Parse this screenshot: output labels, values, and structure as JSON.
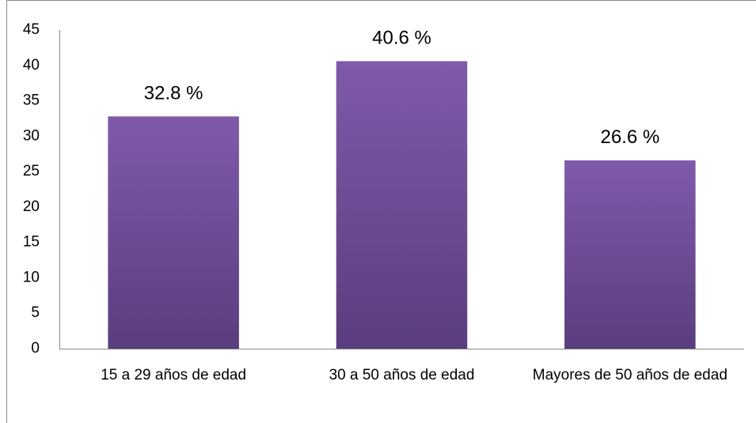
{
  "chart_data": {
    "type": "bar",
    "categories": [
      "15 a 29 años de edad",
      "30 a 50 años de edad",
      "Mayores de 50 años de edad"
    ],
    "values": [
      32.8,
      40.6,
      26.6
    ],
    "value_labels": [
      "32.8 %",
      "40.6 %",
      "26.6 %"
    ],
    "color": "#7a55a5",
    "ylim": [
      0,
      45
    ],
    "yticks": [
      0,
      5,
      10,
      15,
      20,
      25,
      30,
      35,
      40,
      45
    ],
    "grid": false
  }
}
